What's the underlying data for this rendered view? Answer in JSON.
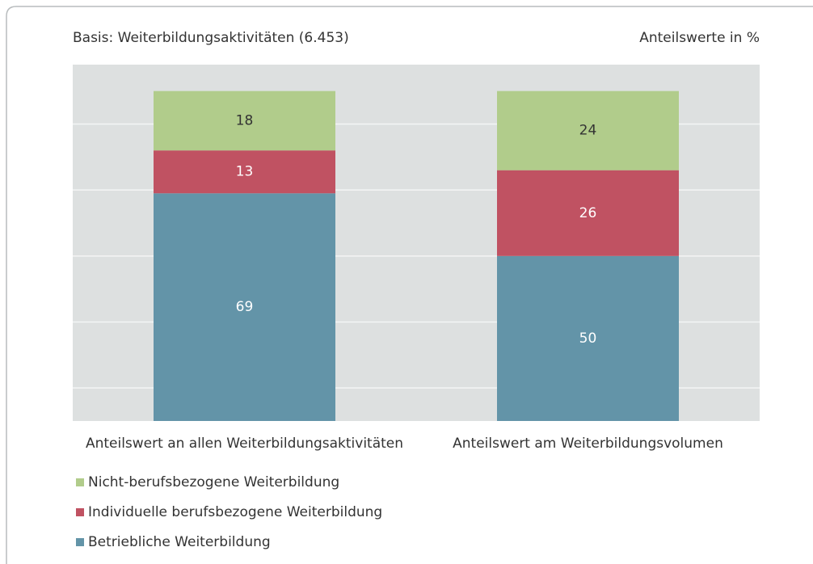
{
  "chart_data": {
    "type": "stacked_bar",
    "subtitle": "Basis: Weiterbildungsaktivitäten (6.453)",
    "unit_note": "Anteilswerte in %",
    "categories": [
      "Anteilswert an allen Weiterbildungsaktivitäten",
      "Anteilswert am Weiterbildungsvolumen"
    ],
    "series": [
      {
        "name": "Betriebliche Weiterbildung",
        "color": "#6394a8",
        "label_color": "#ffffff",
        "values": [
          69,
          50
        ]
      },
      {
        "name": "Individuelle berufsbezogene Weiterbildung",
        "color": "#c05262",
        "label_color": "#ffffff",
        "values": [
          13,
          26
        ]
      },
      {
        "name": "Nicht-berufsbezogene Weiterbildung",
        "color": "#b1cc8b",
        "label_color": "#333333",
        "values": [
          18,
          24
        ]
      }
    ],
    "ylim": [
      0,
      108
    ],
    "yticks": [
      10,
      30,
      50,
      70,
      90
    ],
    "grid": true
  }
}
